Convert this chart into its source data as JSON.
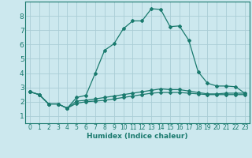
{
  "title": "",
  "xlabel": "Humidex (Indice chaleur)",
  "ylabel": "",
  "bg_color": "#cce8ee",
  "grid_color": "#aacdd6",
  "line_color": "#1a7a6e",
  "xlim": [
    -0.5,
    23.5
  ],
  "ylim": [
    0.5,
    9.0
  ],
  "yticks": [
    1,
    2,
    3,
    4,
    5,
    6,
    7,
    8
  ],
  "xticks": [
    0,
    1,
    2,
    3,
    4,
    5,
    6,
    7,
    8,
    9,
    10,
    11,
    12,
    13,
    14,
    15,
    16,
    17,
    18,
    19,
    20,
    21,
    22,
    23
  ],
  "line1_x": [
    0,
    1,
    2,
    3,
    4,
    5,
    6,
    7,
    8,
    9,
    10,
    11,
    12,
    13,
    14,
    15,
    16,
    17,
    18,
    19,
    20,
    21,
    22,
    23
  ],
  "line1_y": [
    2.7,
    2.5,
    1.85,
    1.85,
    1.55,
    2.3,
    2.45,
    4.0,
    5.6,
    6.05,
    7.1,
    7.65,
    7.65,
    8.5,
    8.45,
    7.25,
    7.3,
    6.3,
    4.1,
    3.3,
    3.1,
    3.1,
    3.05,
    2.6
  ],
  "line2_x": [
    0,
    1,
    2,
    3,
    4,
    5,
    6,
    7,
    8,
    9,
    10,
    11,
    12,
    13,
    14,
    15,
    16,
    17,
    18,
    19,
    20,
    21,
    22,
    23
  ],
  "line2_y": [
    2.7,
    2.5,
    1.85,
    1.85,
    1.55,
    2.05,
    2.1,
    2.2,
    2.3,
    2.4,
    2.5,
    2.6,
    2.7,
    2.8,
    2.9,
    2.85,
    2.85,
    2.75,
    2.65,
    2.55,
    2.55,
    2.6,
    2.6,
    2.6
  ],
  "line3_x": [
    0,
    1,
    2,
    3,
    4,
    5,
    6,
    7,
    8,
    9,
    10,
    11,
    12,
    13,
    14,
    15,
    16,
    17,
    18,
    19,
    20,
    21,
    22,
    23
  ],
  "line3_y": [
    2.7,
    2.5,
    1.85,
    1.85,
    1.55,
    1.9,
    2.0,
    2.05,
    2.1,
    2.2,
    2.3,
    2.4,
    2.5,
    2.6,
    2.65,
    2.65,
    2.65,
    2.6,
    2.55,
    2.5,
    2.5,
    2.5,
    2.5,
    2.5
  ]
}
